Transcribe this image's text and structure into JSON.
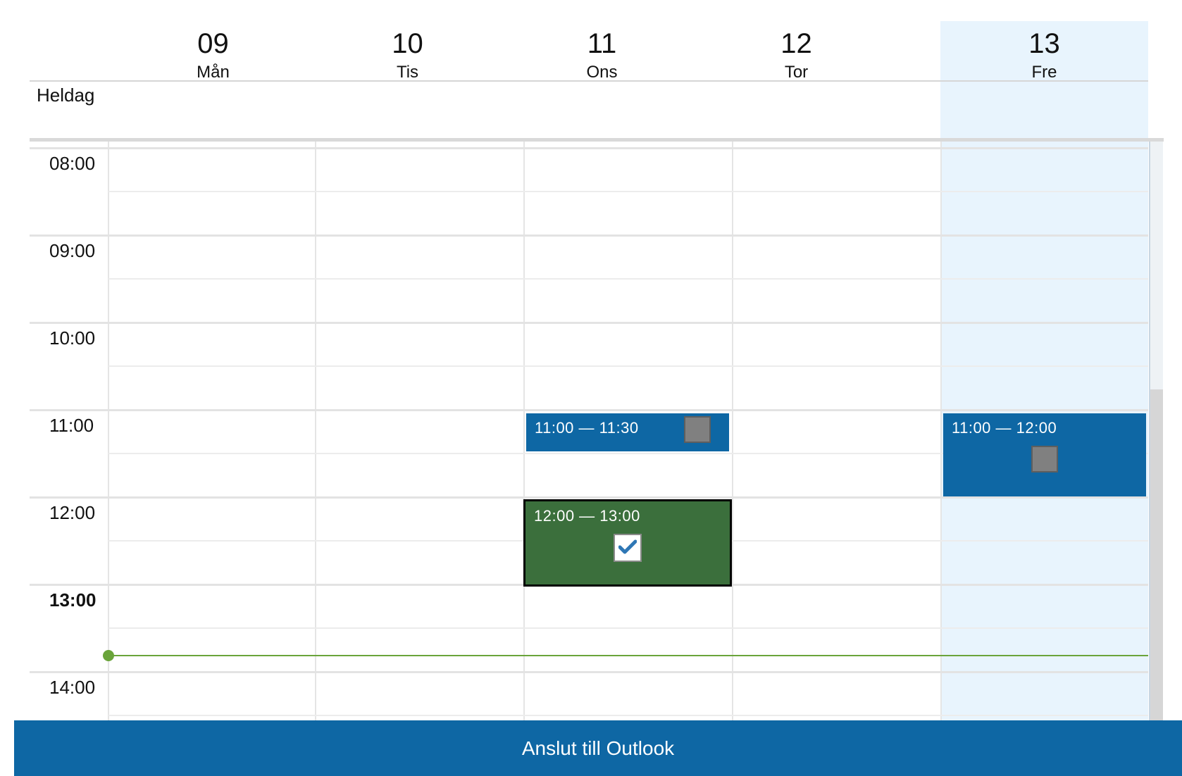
{
  "calendar": {
    "all_day_label": "Heldag",
    "days": [
      {
        "number": "09",
        "name": "Mån",
        "is_today": false
      },
      {
        "number": "10",
        "name": "Tis",
        "is_today": false
      },
      {
        "number": "11",
        "name": "Ons",
        "is_today": false
      },
      {
        "number": "12",
        "name": "Tor",
        "is_today": false
      },
      {
        "number": "13",
        "name": "Fre",
        "is_today": true
      }
    ],
    "hours": [
      "08:00",
      "09:00",
      "10:00",
      "11:00",
      "12:00",
      "13:00",
      "14:00"
    ],
    "current_hour": "13:00",
    "events": [
      {
        "day": "Ons",
        "time_range": "11:00 — 11:30",
        "color": "#0e67a4",
        "marker": "grey-square"
      },
      {
        "day": "Ons",
        "time_range": "12:00 — 13:00",
        "color": "#3b6f3c",
        "marker": "checkmark",
        "selected": true
      },
      {
        "day": "Fre",
        "time_range": "11:00 — 12:00",
        "color": "#0e67a4",
        "marker": "grey-square"
      }
    ]
  },
  "colors": {
    "accent": "#0e67a4",
    "today_background": "#e8f4fd",
    "now_indicator": "#6aa43a",
    "confirmed_event": "#3b6f3c"
  },
  "footer": {
    "connect_label": "Anslut till Outlook"
  }
}
